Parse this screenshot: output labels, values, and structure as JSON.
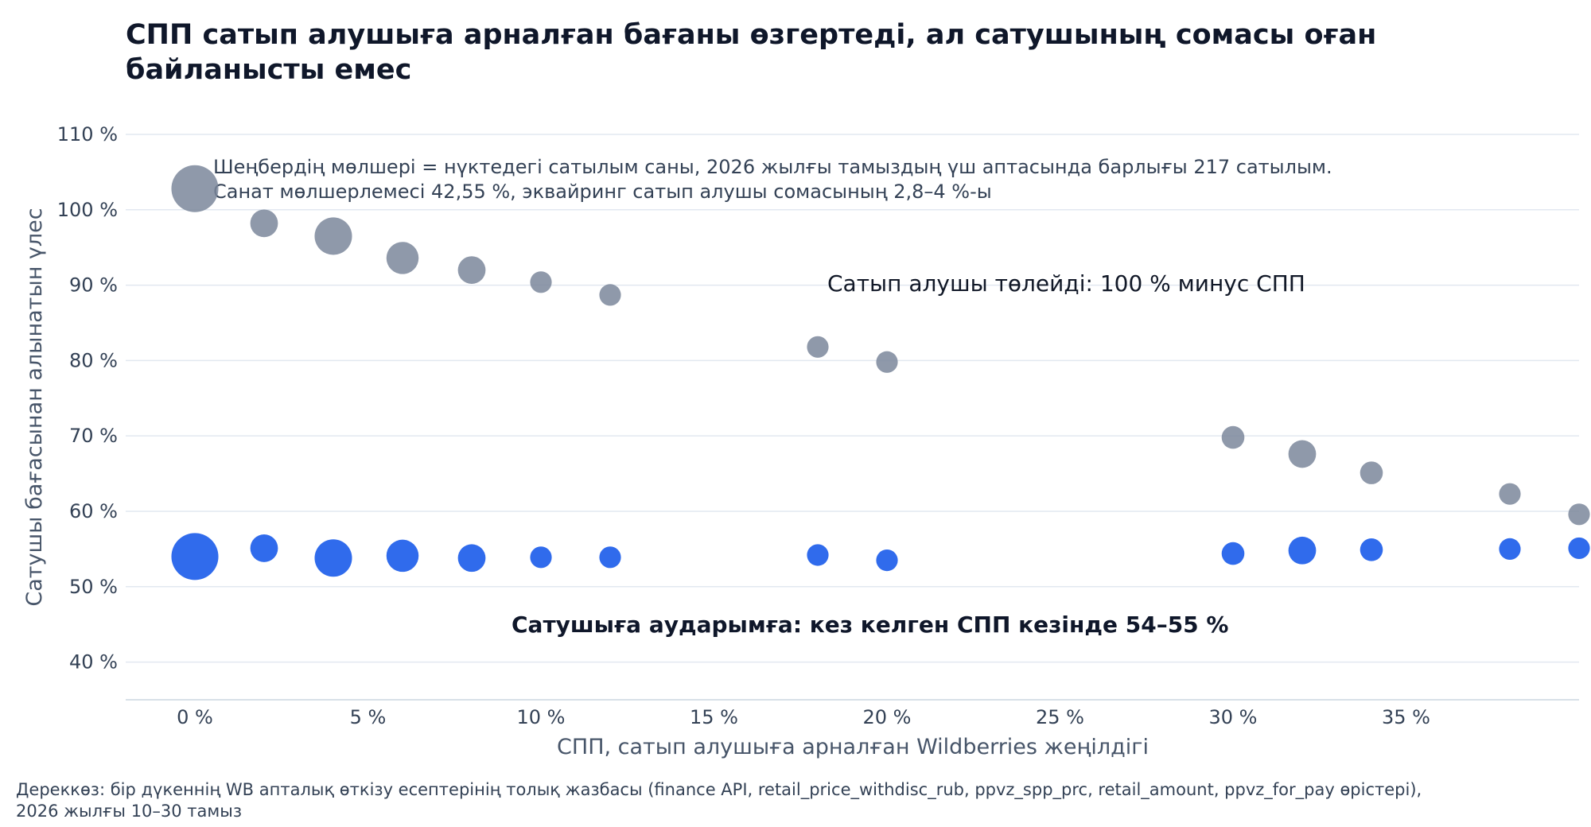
{
  "chart_data": {
    "type": "scatter",
    "title": "СПП сатып алушыға арналған бағаны өзгертеді, ал сатушының сомасы оған байланысты емес",
    "note": [
      "Шеңбердің мөлшері = нүктедегі сатылым саны, 2026 жылғы тамыздың үш аптасында барлығы 217 сатылым.",
      "Санат мөлшерлемесі 42,55 %, эквайринг сатып алушы сомасының 2,8–4 %-ы"
    ],
    "xlabel": "СПП, сатып алушыға арналған Wildberries жеңілдігі",
    "ylabel": "Сатушы бағасынан алынатын үлес",
    "xlim": [
      -2,
      40
    ],
    "ylim": [
      35,
      112
    ],
    "x_ticks": [
      0,
      5,
      10,
      15,
      20,
      25,
      30,
      35
    ],
    "x_tick_labels": [
      "0 %",
      "5 %",
      "10 %",
      "15 %",
      "20 %",
      "25 %",
      "30 %",
      "35 %"
    ],
    "y_ticks": [
      40,
      50,
      60,
      70,
      80,
      90,
      100,
      110
    ],
    "y_tick_labels": [
      "40 %",
      "50 %",
      "60 %",
      "70 %",
      "80 %",
      "90 %",
      "100 %",
      "110 %"
    ],
    "grid": true,
    "annotations": {
      "buyer_pays": "Сатып алушы төлейді: 100 % минус СПП",
      "seller_transfer": "Сатушыға аударымға: кез келген СПП кезінде 54–55 %"
    },
    "colors": {
      "buyer": "#7b879b",
      "seller": "#2563eb",
      "grid": "#e2e8f0"
    },
    "series": [
      {
        "x": [
          0,
          2,
          4,
          6,
          8,
          10,
          12,
          18,
          20,
          30,
          32,
          34,
          38,
          40
        ],
        "y": [
          102.8,
          98.2,
          96.5,
          93.6,
          92.0,
          90.4,
          88.7,
          81.8,
          79.8,
          69.8,
          67.6,
          65.1,
          62.3,
          59.6
        ],
        "sizes": [
          60,
          10,
          30,
          18,
          10,
          3,
          3,
          3,
          3,
          4,
          10,
          4,
          3,
          3
        ]
      },
      {
        "x": [
          0,
          2,
          4,
          6,
          8,
          10,
          12,
          18,
          20,
          30,
          32,
          34,
          38,
          40
        ],
        "y": [
          54.0,
          55.1,
          53.8,
          54.1,
          53.8,
          53.9,
          53.9,
          54.2,
          53.5,
          54.4,
          54.8,
          54.9,
          55.0,
          55.1
        ],
        "sizes": [
          60,
          10,
          30,
          18,
          10,
          3,
          3,
          3,
          3,
          4,
          10,
          4,
          3,
          3
        ]
      }
    ]
  },
  "source": "Дереккөз: бір дүкеннің WB апталық өткізу есептерінің толық жазбасы (finance API, retail_price_withdisc_rub, ppvz_spp_prc, retail_amount, ppvz_for_pay өрістері), 2026 жылғы 10–30 тамыз"
}
